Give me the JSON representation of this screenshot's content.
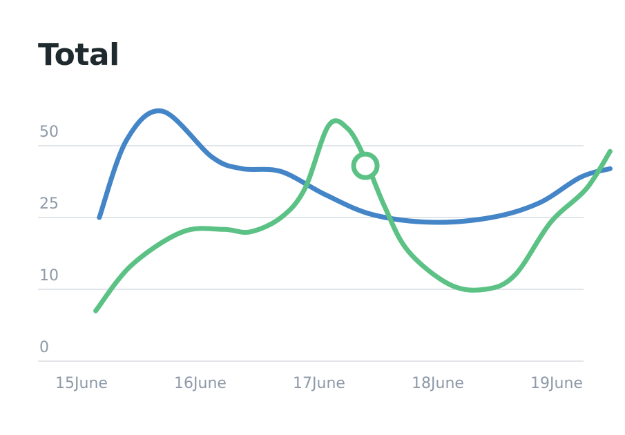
{
  "title": "Total",
  "chart_data": {
    "type": "line",
    "title": "Total",
    "xlabel": "",
    "ylabel": "",
    "y_ticks": [
      {
        "value": 0,
        "label": "0"
      },
      {
        "value": 10,
        "label": "10"
      },
      {
        "value": 25,
        "label": "25"
      },
      {
        "value": 50,
        "label": "50"
      }
    ],
    "x_ticks": [
      "15June",
      "16June",
      "17June",
      "18June",
      "19June"
    ],
    "grid": true,
    "legend": "none",
    "series": [
      {
        "color": "#4385c7",
        "points": [
          {
            "x": 0.15,
            "y": 25
          },
          {
            "x": 0.38,
            "y": 52
          },
          {
            "x": 0.68,
            "y": 62
          },
          {
            "x": 1.1,
            "y": 46
          },
          {
            "x": 1.35,
            "y": 42
          },
          {
            "x": 1.68,
            "y": 41
          },
          {
            "x": 2.05,
            "y": 33
          },
          {
            "x": 2.45,
            "y": 26
          },
          {
            "x": 2.95,
            "y": 24
          },
          {
            "x": 3.45,
            "y": 25
          },
          {
            "x": 3.85,
            "y": 30
          },
          {
            "x": 4.2,
            "y": 39
          },
          {
            "x": 4.45,
            "y": 42
          }
        ]
      },
      {
        "color": "#5cc185",
        "points": [
          {
            "x": 0.12,
            "y": 7
          },
          {
            "x": 0.42,
            "y": 15
          },
          {
            "x": 0.85,
            "y": 22
          },
          {
            "x": 1.2,
            "y": 22.5
          },
          {
            "x": 1.42,
            "y": 22
          },
          {
            "x": 1.68,
            "y": 25
          },
          {
            "x": 1.88,
            "y": 35
          },
          {
            "x": 2.08,
            "y": 57
          },
          {
            "x": 2.24,
            "y": 56
          },
          {
            "x": 2.38,
            "y": 46
          },
          {
            "x": 2.55,
            "y": 29
          },
          {
            "x": 2.75,
            "y": 18
          },
          {
            "x": 3.1,
            "y": 11
          },
          {
            "x": 3.4,
            "y": 10
          },
          {
            "x": 3.65,
            "y": 13
          },
          {
            "x": 3.95,
            "y": 24
          },
          {
            "x": 4.25,
            "y": 35
          },
          {
            "x": 4.45,
            "y": 48
          }
        ],
        "highlight": {
          "x": 2.39,
          "y": 43
        }
      }
    ]
  }
}
